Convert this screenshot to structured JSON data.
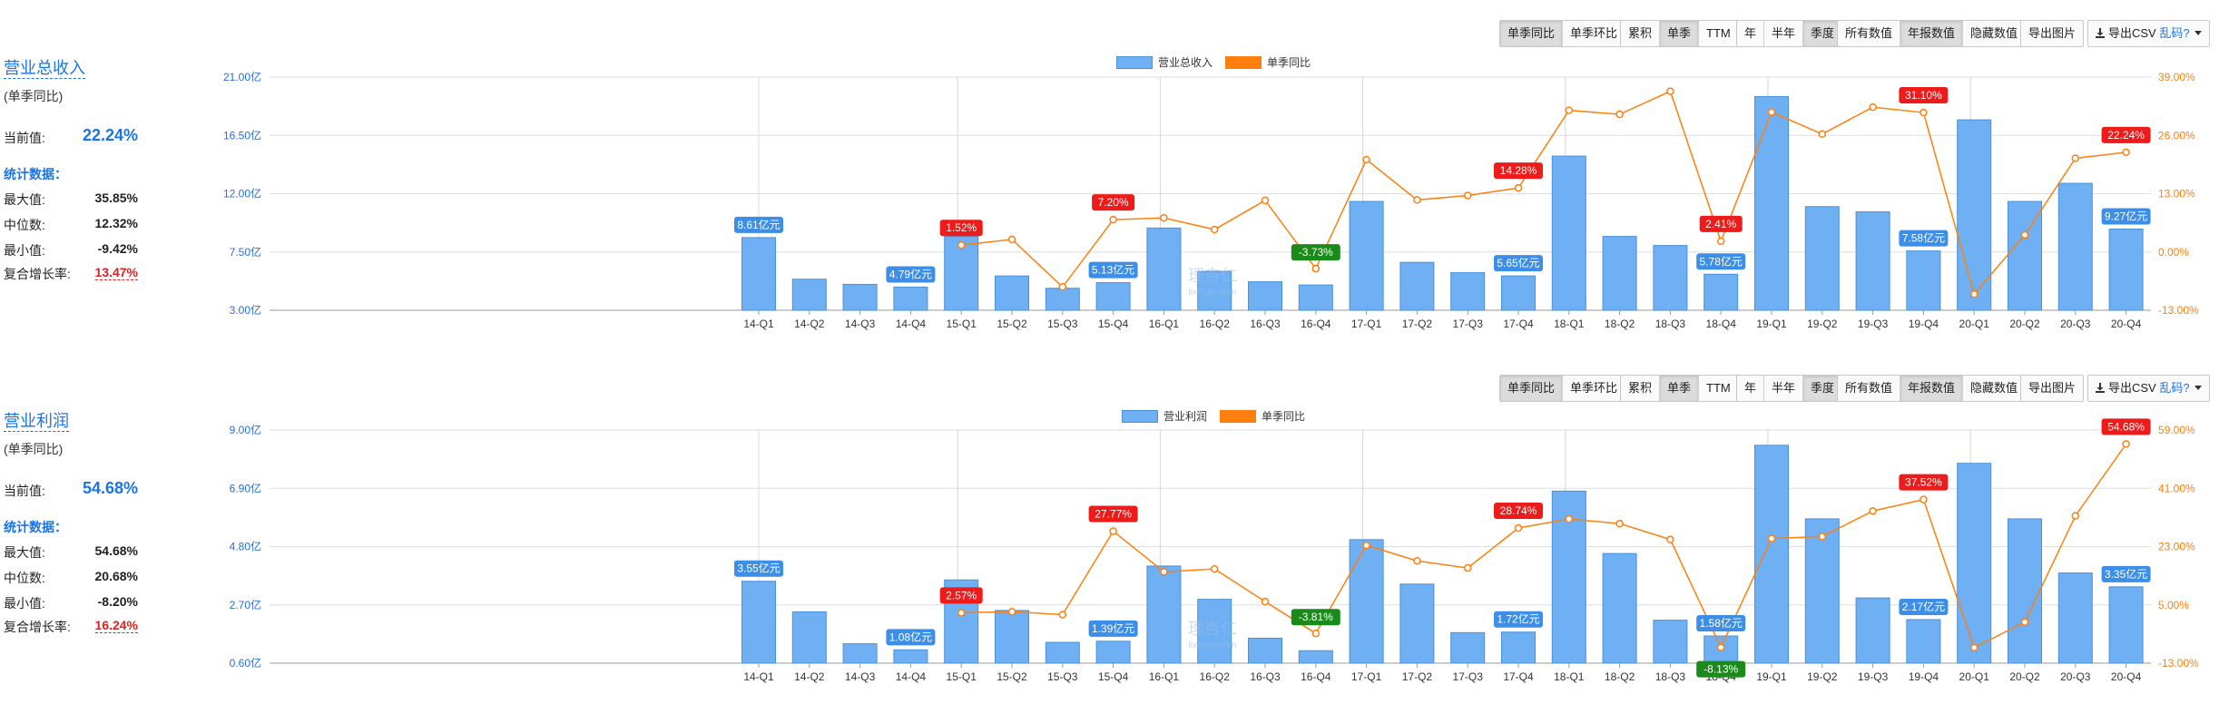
{
  "toolbar": {
    "groups": [
      [
        "单季同比",
        "单季环比"
      ],
      [
        "累积",
        "单季",
        "TTM"
      ],
      [
        "年",
        "半年",
        "季度"
      ],
      [
        "所有数值",
        "年报数值",
        "隐藏数值"
      ],
      [
        "导出图片"
      ]
    ],
    "active": [
      "单季同比",
      "单季",
      "季度",
      "年报数值"
    ],
    "csv_label": "导出CSV",
    "csv_extra": "乱码?"
  },
  "watermark": {
    "main": "理杏仁",
    "sub": "lixinger.com"
  },
  "colors": {
    "bar": "#6fb0f5",
    "bar_edge": "#4a90d9",
    "line": "#ff7f0e",
    "label_blue": "#3d8ee8",
    "label_red": "#ee1b1b",
    "label_green": "#1a8a1a"
  },
  "panels": [
    {
      "side": {
        "title": "营业总收入",
        "subtitle": "(单季同比)",
        "current_label": "当前值:",
        "current_value": "22.24%",
        "stats_header": "统计数据：",
        "stats": [
          {
            "label": "最大值:",
            "value": "35.85%"
          },
          {
            "label": "中位数:",
            "value": "12.32%"
          },
          {
            "label": "最小值:",
            "value": "-9.42%"
          }
        ],
        "cagr_label": "复合增长率:",
        "cagr_value": "13.47%"
      },
      "chart_data": {
        "type": "bar",
        "legend": [
          "营业总收入",
          "单季同比"
        ],
        "categories": [
          "14-Q1",
          "14-Q2",
          "14-Q3",
          "14-Q4",
          "15-Q1",
          "15-Q2",
          "15-Q3",
          "15-Q4",
          "16-Q1",
          "16-Q2",
          "16-Q3",
          "16-Q4",
          "17-Q1",
          "17-Q2",
          "17-Q3",
          "17-Q4",
          "18-Q1",
          "18-Q2",
          "18-Q3",
          "18-Q4",
          "19-Q1",
          "19-Q2",
          "19-Q3",
          "19-Q4",
          "20-Q1",
          "20-Q2",
          "20-Q3",
          "20-Q4"
        ],
        "y_left_ticks": [
          "3.00亿",
          "7.50亿",
          "12.00亿",
          "16.50亿",
          "21.00亿"
        ],
        "y_left_range": [
          3,
          21
        ],
        "y_right_ticks": [
          "-13.00%",
          "0.00%",
          "13.00%",
          "26.00%",
          "39.00%"
        ],
        "y_right_range": [
          -13,
          39
        ],
        "series": [
          {
            "name": "营业总收入",
            "unit": "亿",
            "values": [
              8.61,
              5.4,
              5.0,
              4.79,
              8.7,
              5.65,
              4.7,
              5.13,
              9.35,
              6.0,
              5.2,
              4.95,
              11.4,
              6.7,
              5.9,
              5.65,
              14.9,
              8.7,
              8.0,
              5.78,
              19.5,
              11.0,
              10.6,
              7.58,
              17.7,
              11.4,
              12.8,
              9.27
            ]
          },
          {
            "name": "单季同比",
            "unit": "%",
            "values": [
              null,
              null,
              null,
              null,
              1.52,
              2.8,
              -7.8,
              7.2,
              7.6,
              5.0,
              11.5,
              -3.73,
              20.6,
              11.6,
              12.6,
              14.28,
              31.6,
              30.7,
              35.85,
              2.41,
              31.2,
              26.3,
              32.3,
              31.1,
              -9.42,
              3.8,
              20.9,
              22.24
            ]
          }
        ],
        "bar_labels": [
          {
            "index": 0,
            "text": "8.61亿元"
          },
          {
            "index": 3,
            "text": "4.79亿元"
          },
          {
            "index": 7,
            "text": "5.13亿元"
          },
          {
            "index": 15,
            "text": "5.65亿元"
          },
          {
            "index": 19,
            "text": "5.78亿元"
          },
          {
            "index": 23,
            "text": "7.58亿元"
          },
          {
            "index": 27,
            "text": "9.27亿元"
          }
        ],
        "line_labels": [
          {
            "index": 4,
            "text": "1.52%"
          },
          {
            "index": 7,
            "text": "7.20%"
          },
          {
            "index": 11,
            "text": "-3.73%"
          },
          {
            "index": 15,
            "text": "14.28%"
          },
          {
            "index": 19,
            "text": "2.41%"
          },
          {
            "index": 23,
            "text": "31.10%"
          },
          {
            "index": 27,
            "text": "22.24%"
          }
        ],
        "grid": true,
        "legend_position": "top-center"
      }
    },
    {
      "side": {
        "title": "营业利润",
        "subtitle": "(单季同比)",
        "current_label": "当前值:",
        "current_value": "54.68%",
        "stats_header": "统计数据：",
        "stats": [
          {
            "label": "最大值:",
            "value": "54.68%"
          },
          {
            "label": "中位数:",
            "value": "20.68%"
          },
          {
            "label": "最小值:",
            "value": "-8.20%"
          }
        ],
        "cagr_label": "复合增长率:",
        "cagr_value": "16.24%"
      },
      "chart_data": {
        "type": "bar",
        "legend": [
          "营业利润",
          "单季同比"
        ],
        "categories": [
          "14-Q1",
          "14-Q2",
          "14-Q3",
          "14-Q4",
          "15-Q1",
          "15-Q2",
          "15-Q3",
          "15-Q4",
          "16-Q1",
          "16-Q2",
          "16-Q3",
          "16-Q4",
          "17-Q1",
          "17-Q2",
          "17-Q3",
          "17-Q4",
          "18-Q1",
          "18-Q2",
          "18-Q3",
          "18-Q4",
          "19-Q1",
          "19-Q2",
          "19-Q3",
          "19-Q4",
          "20-Q1",
          "20-Q2",
          "20-Q3",
          "20-Q4"
        ],
        "y_left_ticks": [
          "0.60亿",
          "2.70亿",
          "4.80亿",
          "6.90亿",
          "9.00亿"
        ],
        "y_left_range": [
          0.6,
          9.0
        ],
        "y_right_ticks": [
          "-13.00%",
          "5.00%",
          "23.00%",
          "41.00%",
          "59.00%"
        ],
        "y_right_range": [
          -13,
          59
        ],
        "series": [
          {
            "name": "营业利润",
            "unit": "亿",
            "values": [
              3.55,
              2.45,
              1.3,
              1.08,
              3.6,
              2.5,
              1.35,
              1.39,
              4.1,
              2.9,
              1.5,
              1.05,
              5.05,
              3.45,
              1.7,
              1.72,
              6.8,
              4.55,
              2.15,
              1.58,
              8.45,
              5.8,
              2.95,
              2.17,
              7.8,
              5.8,
              3.85,
              3.35
            ]
          },
          {
            "name": "单季同比",
            "unit": "%",
            "values": [
              null,
              null,
              null,
              null,
              2.57,
              2.9,
              2.0,
              27.77,
              15.2,
              16.1,
              6.0,
              -3.81,
              23.4,
              18.6,
              16.4,
              28.74,
              31.5,
              30.1,
              25.2,
              -8.13,
              25.5,
              26.1,
              34.0,
              37.52,
              -8.2,
              -0.3,
              32.5,
              54.68
            ]
          }
        ],
        "bar_labels": [
          {
            "index": 0,
            "text": "3.55亿元"
          },
          {
            "index": 3,
            "text": "1.08亿元"
          },
          {
            "index": 7,
            "text": "1.39亿元"
          },
          {
            "index": 15,
            "text": "1.72亿元"
          },
          {
            "index": 19,
            "text": "1.58亿元"
          },
          {
            "index": 23,
            "text": "2.17亿元"
          },
          {
            "index": 27,
            "text": "3.35亿元"
          }
        ],
        "line_labels": [
          {
            "index": 4,
            "text": "2.57%"
          },
          {
            "index": 7,
            "text": "27.77%"
          },
          {
            "index": 11,
            "text": "-3.81%"
          },
          {
            "index": 15,
            "text": "28.74%"
          },
          {
            "index": 19,
            "text": "-8.13%"
          },
          {
            "index": 23,
            "text": "37.52%"
          },
          {
            "index": 27,
            "text": "54.68%"
          }
        ],
        "grid": true,
        "legend_position": "top-center"
      }
    }
  ]
}
